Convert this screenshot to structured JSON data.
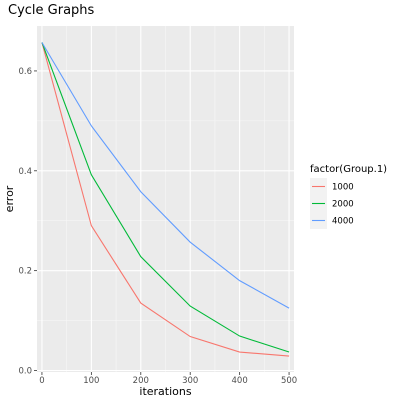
{
  "chart_data": {
    "type": "line",
    "title": "Cycle Graphs",
    "xlabel": "iterations",
    "ylabel": "error",
    "x": [
      0,
      100,
      200,
      300,
      400,
      500
    ],
    "xlim": [
      -10,
      510
    ],
    "ylim": [
      -0.003,
      0.69
    ],
    "xticks": [
      0,
      100,
      200,
      300,
      400,
      500
    ],
    "xtick_labels": [
      "0",
      "100",
      "200",
      "300",
      "400",
      "500"
    ],
    "yticks": [
      0.0,
      0.2,
      0.4,
      0.6
    ],
    "ytick_labels": [
      "0.0",
      "0.2",
      "0.4",
      "0.6"
    ],
    "grid": true,
    "legend": {
      "title": "factor(Group.1)",
      "position": "right"
    },
    "series": [
      {
        "name": "1000",
        "color": "#F8766D",
        "values": [
          0.657,
          0.29,
          0.135,
          0.068,
          0.037,
          0.029
        ]
      },
      {
        "name": "2000",
        "color": "#00BA38",
        "values": [
          0.657,
          0.392,
          0.228,
          0.129,
          0.069,
          0.037
        ]
      },
      {
        "name": "4000",
        "color": "#619CFF",
        "values": [
          0.657,
          0.49,
          0.358,
          0.257,
          0.18,
          0.125
        ]
      }
    ]
  }
}
